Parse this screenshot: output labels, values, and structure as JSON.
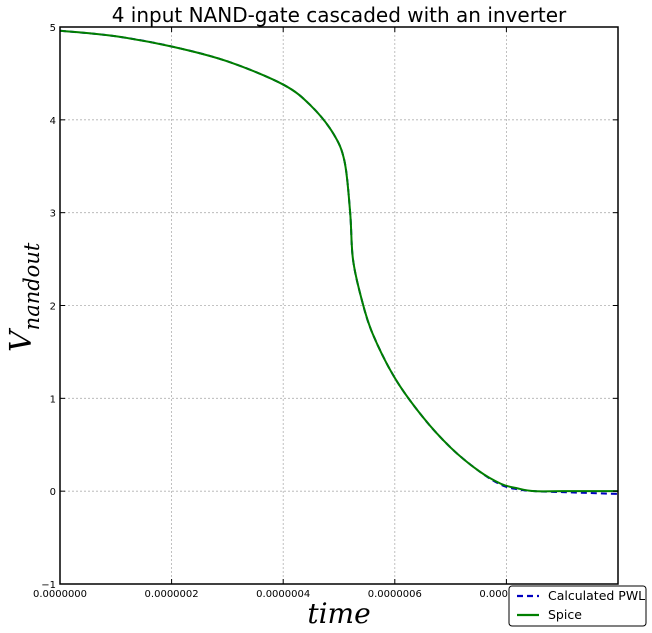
{
  "chart_data": {
    "type": "line",
    "title": "4 input NAND-gate cascaded with an inverter",
    "xlabel": "time",
    "ylabel": {
      "main": "V",
      "subscript": "nandout"
    },
    "xlim": [
      0,
      1e-06
    ],
    "ylim": [
      -1,
      5
    ],
    "xticks": [
      "0.0000000",
      "0.0000002",
      "0.0000004",
      "0.0000006",
      "0.0000008"
    ],
    "yticks": [
      -1,
      0,
      1,
      2,
      3,
      4,
      5
    ],
    "grid": true,
    "legend_placement": "bottom-right",
    "series": [
      {
        "name": "Calculated PWL",
        "color": "#0000bf",
        "style": "dashed",
        "x": [
          0,
          1e-07,
          2e-07,
          3e-07,
          4e-07,
          4.5e-07,
          4.9e-07,
          5.1e-07,
          5.2e-07,
          5.25e-07,
          5.4e-07,
          5.6e-07,
          6e-07,
          6.5e-07,
          7e-07,
          7.5e-07,
          7.9e-07,
          8.2e-07,
          8.5e-07,
          9e-07,
          9.5e-07,
          1e-06
        ],
        "values": [
          4.96,
          4.9,
          4.79,
          4.63,
          4.38,
          4.15,
          3.85,
          3.55,
          3.0,
          2.5,
          2.08,
          1.7,
          1.22,
          0.8,
          0.47,
          0.22,
          0.07,
          0.02,
          0.0,
          -0.01,
          -0.02,
          -0.03
        ]
      },
      {
        "name": "Spice",
        "color": "#007f00",
        "style": "solid",
        "x": [
          0,
          1e-07,
          2e-07,
          3e-07,
          4e-07,
          4.5e-07,
          4.9e-07,
          5.1e-07,
          5.2e-07,
          5.25e-07,
          5.4e-07,
          5.6e-07,
          6e-07,
          6.5e-07,
          7e-07,
          7.5e-07,
          7.9e-07,
          8.2e-07,
          8.5e-07,
          9e-07,
          9.5e-07,
          1e-06
        ],
        "values": [
          4.96,
          4.9,
          4.79,
          4.63,
          4.38,
          4.15,
          3.85,
          3.55,
          3.0,
          2.5,
          2.08,
          1.7,
          1.22,
          0.8,
          0.47,
          0.22,
          0.08,
          0.03,
          0.0,
          0.0,
          0.0,
          0.0
        ]
      }
    ]
  }
}
